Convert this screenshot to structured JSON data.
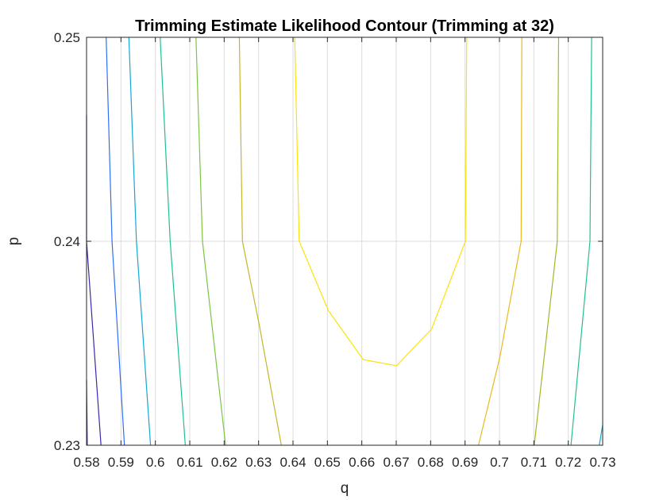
{
  "chart_data": {
    "type": "contour",
    "title": "Trimming Estimate Likelihood Contour (Trimming at 32)",
    "xlabel": "q",
    "ylabel": "p",
    "xlim": [
      0.58,
      0.73
    ],
    "ylim": [
      0.23,
      0.25
    ],
    "x_ticks": [
      0.58,
      0.59,
      0.6,
      0.61,
      0.62,
      0.63,
      0.64,
      0.65,
      0.66,
      0.67,
      0.68,
      0.69,
      0.7,
      0.71,
      0.72,
      0.73
    ],
    "x_tick_labels": [
      "0.58",
      "0.59",
      "0.6",
      "0.61",
      "0.62",
      "0.63",
      "0.64",
      "0.65",
      "0.66",
      "0.67",
      "0.68",
      "0.69",
      "0.7",
      "0.71",
      "0.72",
      "0.73"
    ],
    "y_ticks": [
      0.23,
      0.24,
      0.25
    ],
    "y_tick_labels": [
      "0.23",
      "0.24",
      "0.25"
    ],
    "grid": true,
    "contour_lines": [
      {
        "color": "#3e26a8",
        "points": [
          [
            0.58,
            0.2462
          ],
          [
            0.58,
            0.24
          ],
          [
            0.5842,
            0.23
          ]
        ]
      },
      {
        "color": "#3e26a8",
        "points": [
          [
            0.58,
            0.2332
          ],
          [
            0.5802,
            0.23
          ]
        ]
      },
      {
        "color": "#2e6ff5",
        "points": [
          [
            0.5857,
            0.25
          ],
          [
            0.5874,
            0.24
          ],
          [
            0.591,
            0.23
          ]
        ]
      },
      {
        "color": "#14a6d4",
        "points": [
          [
            0.5923,
            0.25
          ],
          [
            0.5945,
            0.24
          ],
          [
            0.5986,
            0.23
          ]
        ]
      },
      {
        "color": "#1fbf95",
        "points": [
          [
            0.6014,
            0.25
          ],
          [
            0.6043,
            0.24
          ],
          [
            0.6087,
            0.23
          ]
        ]
      },
      {
        "color": "#7cc444",
        "points": [
          [
            0.6118,
            0.25
          ],
          [
            0.6137,
            0.24
          ],
          [
            0.6204,
            0.23
          ]
        ]
      },
      {
        "color": "#c7b52a",
        "points": [
          [
            0.6244,
            0.25
          ],
          [
            0.6253,
            0.24
          ],
          [
            0.6302,
            0.2359
          ],
          [
            0.6366,
            0.23
          ]
        ]
      },
      {
        "color": "#fae30c",
        "points": [
          [
            0.6405,
            0.25
          ],
          [
            0.6418,
            0.24
          ],
          [
            0.6503,
            0.2366
          ],
          [
            0.6604,
            0.2342
          ],
          [
            0.6701,
            0.2339
          ],
          [
            0.6803,
            0.2357
          ],
          [
            0.6901,
            0.24
          ],
          [
            0.6905,
            0.25
          ]
        ]
      },
      {
        "color": "#e8ba20",
        "points": [
          [
            0.6939,
            0.23
          ],
          [
            0.7001,
            0.2343
          ],
          [
            0.7063,
            0.24
          ],
          [
            0.7065,
            0.25
          ]
        ]
      },
      {
        "color": "#9bba2a",
        "points": [
          [
            0.7101,
            0.23
          ],
          [
            0.7168,
            0.24
          ],
          [
            0.7172,
            0.25
          ]
        ]
      },
      {
        "color": "#26bf8a",
        "points": [
          [
            0.7208,
            0.23
          ],
          [
            0.7263,
            0.24
          ],
          [
            0.7268,
            0.25
          ]
        ]
      },
      {
        "color": "#14a6d4",
        "points": [
          [
            0.729,
            0.23
          ],
          [
            0.73,
            0.231
          ]
        ]
      }
    ]
  }
}
